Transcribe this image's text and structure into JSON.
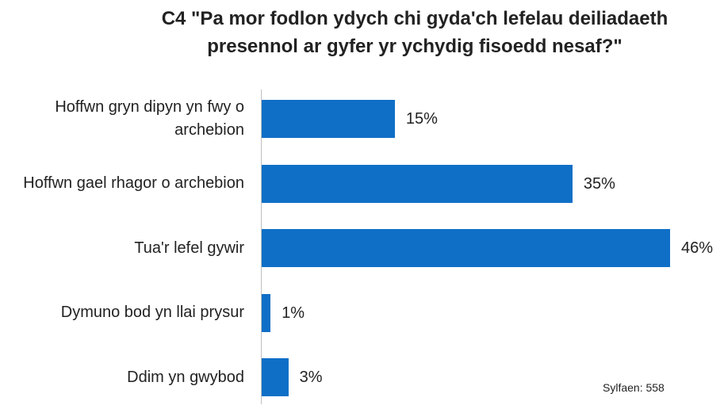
{
  "chart_data": {
    "type": "bar",
    "orientation": "horizontal",
    "title": "C4 \"Pa mor fodlon ydych chi gyda'ch lefelau deiliadaeth presennol ar gyfer yr ychydig fisoedd nesaf?\"",
    "categories": [
      "Hoffwn gryn dipyn yn fwy o archebion",
      "Hoffwn gael rhagor o archebion",
      "Tua'r lefel gywir",
      "Dymuno bod yn llai prysur",
      "Ddim yn gwybod"
    ],
    "values": [
      15,
      35,
      46,
      1,
      3
    ],
    "value_labels": [
      "15%",
      "35%",
      "46%",
      "1%",
      "3%"
    ],
    "color": "#0f6fc6",
    "annotation": "Sylfaen: 558"
  }
}
